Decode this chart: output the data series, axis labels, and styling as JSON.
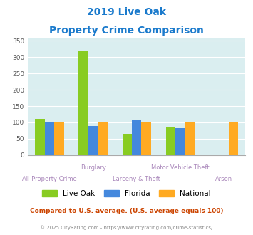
{
  "title_line1": "2019 Live Oak",
  "title_line2": "Property Crime Comparison",
  "groups": [
    "Live Oak",
    "Florida",
    "National"
  ],
  "values": [
    [
      110,
      320,
      65,
      85,
      0
    ],
    [
      102,
      88,
      108,
      83,
      0
    ],
    [
      100,
      100,
      100,
      100,
      100
    ]
  ],
  "colors": [
    "#88cc22",
    "#4488dd",
    "#ffaa22"
  ],
  "bar_width": 0.22,
  "ylim": [
    0,
    360
  ],
  "yticks": [
    0,
    50,
    100,
    150,
    200,
    250,
    300,
    350
  ],
  "bg_color": "#daeef0",
  "title_color": "#1a7acc",
  "xlabel_color": "#aa88bb",
  "top_labels": [
    [
      1,
      "Burglary"
    ],
    [
      3,
      "Motor Vehicle Theft"
    ]
  ],
  "bot_labels": [
    [
      0,
      "All Property Crime"
    ],
    [
      2,
      "Larceny & Theft"
    ],
    [
      4,
      "Arson"
    ]
  ],
  "footer_text": "Compared to U.S. average. (U.S. average equals 100)",
  "copyright_text": "© 2025 CityRating.com - https://www.cityrating.com/crime-statistics/",
  "footer_color": "#cc4400",
  "copyright_color": "#888888"
}
